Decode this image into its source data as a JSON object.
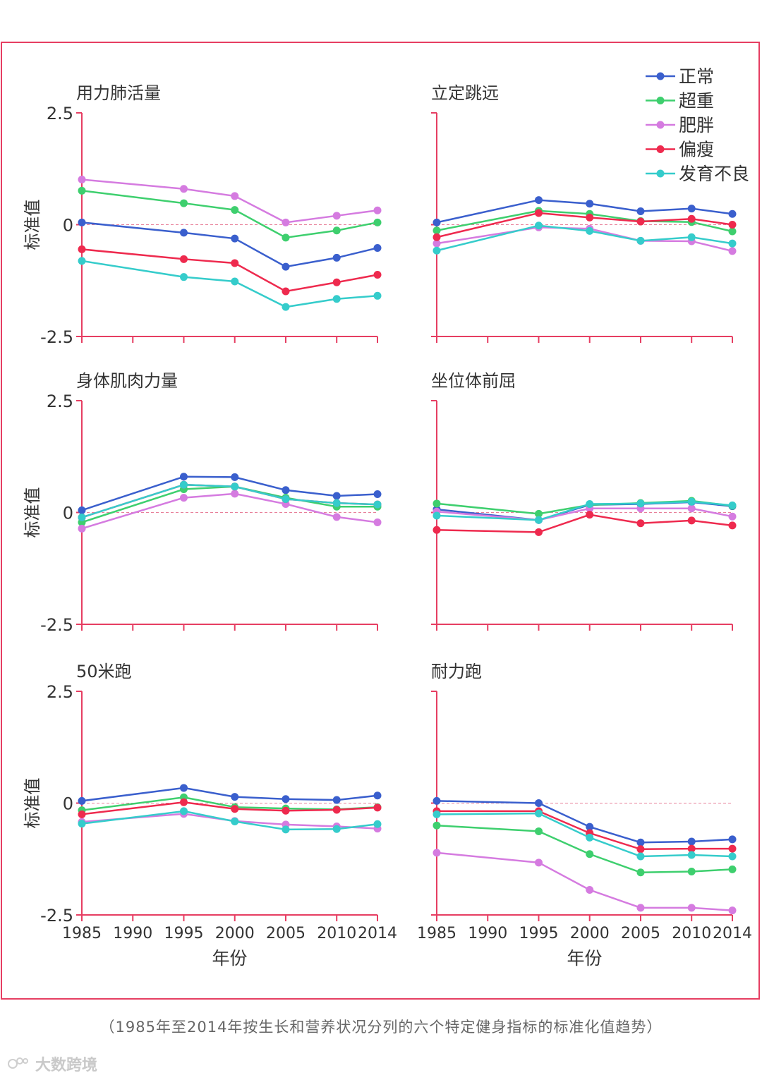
{
  "legend": [
    {
      "name": "正常",
      "color": "#3a5fcd"
    },
    {
      "name": "超重",
      "color": "#3ecf6e"
    },
    {
      "name": "肥胖",
      "color": "#d57be0"
    },
    {
      "name": "偏瘦",
      "color": "#ee2a4e"
    },
    {
      "name": "发育不良",
      "color": "#35cccb"
    }
  ],
  "axis_color": "#e63e62",
  "x_ticks": [
    "1985",
    "1990",
    "1995",
    "2000",
    "2005",
    "2010",
    "2014"
  ],
  "xlabel": "年份",
  "ylabel": "标准值",
  "y_ticks": [
    "2.5",
    "0",
    "-2.5"
  ],
  "caption": "（1985年至2014年按生长和营养状况分列的六个特定健身指标的标准化值趋势）",
  "watermark": "大数跨境",
  "chart_data": [
    {
      "type": "line",
      "title": "用力肺活量",
      "x": [
        1985,
        1995,
        2000,
        2005,
        2010,
        2014
      ],
      "ylim": [
        -2.5,
        2.5
      ],
      "series": [
        {
          "name": "正常",
          "values": [
            0.05,
            -0.18,
            -0.31,
            -0.94,
            -0.74,
            -0.52
          ]
        },
        {
          "name": "超重",
          "values": [
            0.76,
            0.48,
            0.33,
            -0.29,
            -0.13,
            0.05
          ]
        },
        {
          "name": "肥胖",
          "values": [
            1.01,
            0.8,
            0.64,
            0.05,
            0.2,
            0.32
          ]
        },
        {
          "name": "偏瘦",
          "values": [
            -0.55,
            -0.77,
            -0.86,
            -1.49,
            -1.29,
            -1.12
          ]
        },
        {
          "name": "发育不良",
          "values": [
            -0.81,
            -1.17,
            -1.27,
            -1.84,
            -1.66,
            -1.59
          ]
        }
      ]
    },
    {
      "type": "line",
      "title": "立定跳远",
      "x": [
        1985,
        1995,
        2000,
        2005,
        2010,
        2014
      ],
      "ylim": [
        -2.5,
        2.5
      ],
      "series": [
        {
          "name": "正常",
          "values": [
            0.05,
            0.55,
            0.47,
            0.3,
            0.36,
            0.24
          ]
        },
        {
          "name": "超重",
          "values": [
            -0.13,
            0.31,
            0.24,
            0.08,
            0.06,
            -0.15
          ]
        },
        {
          "name": "肥胖",
          "values": [
            -0.42,
            -0.06,
            -0.09,
            -0.36,
            -0.37,
            -0.59
          ]
        },
        {
          "name": "偏瘦",
          "values": [
            -0.28,
            0.26,
            0.16,
            0.07,
            0.13,
            0.0
          ]
        },
        {
          "name": "发育不良",
          "values": [
            -0.58,
            -0.02,
            -0.14,
            -0.36,
            -0.28,
            -0.42
          ]
        }
      ]
    },
    {
      "type": "line",
      "title": "身体肌肉力量",
      "x": [
        1985,
        1995,
        2000,
        2005,
        2010,
        2014
      ],
      "ylim": [
        -2.5,
        2.5
      ],
      "series": [
        {
          "name": "正常",
          "values": [
            0.05,
            0.8,
            0.79,
            0.5,
            0.37,
            0.41
          ]
        },
        {
          "name": "超重",
          "values": [
            -0.22,
            0.52,
            0.58,
            0.33,
            0.13,
            0.13
          ]
        },
        {
          "name": "肥胖",
          "values": [
            -0.36,
            0.33,
            0.42,
            0.19,
            -0.1,
            -0.22
          ]
        },
        {
          "name": "偏瘦",
          "values": [
            -0.11,
            0.62,
            0.58,
            0.3,
            0.21,
            0.18
          ]
        },
        {
          "name": "发育不良",
          "values": [
            -0.11,
            0.62,
            0.58,
            0.3,
            0.21,
            0.18
          ]
        }
      ]
    },
    {
      "type": "line",
      "title": "坐位体前屈",
      "x": [
        1985,
        1995,
        2000,
        2005,
        2010,
        2014
      ],
      "ylim": [
        -2.5,
        2.5
      ],
      "series": [
        {
          "name": "正常",
          "values": [
            0.07,
            -0.17,
            0.17,
            0.19,
            0.23,
            0.14
          ]
        },
        {
          "name": "超重",
          "values": [
            0.2,
            -0.03,
            0.17,
            0.21,
            0.26,
            0.15
          ]
        },
        {
          "name": "肥胖",
          "values": [
            0.02,
            -0.17,
            0.09,
            0.09,
            0.09,
            -0.09
          ]
        },
        {
          "name": "偏瘦",
          "values": [
            -0.39,
            -0.44,
            -0.05,
            -0.24,
            -0.18,
            -0.29
          ]
        },
        {
          "name": "发育不良",
          "values": [
            -0.07,
            -0.17,
            0.19,
            0.2,
            0.24,
            0.16
          ]
        }
      ]
    },
    {
      "type": "line",
      "title": "50米跑",
      "x": [
        1985,
        1995,
        2000,
        2005,
        2010,
        2014
      ],
      "ylim": [
        -2.5,
        2.5
      ],
      "series": [
        {
          "name": "正常",
          "values": [
            0.05,
            0.34,
            0.14,
            0.09,
            0.07,
            0.17
          ]
        },
        {
          "name": "超重",
          "values": [
            -0.16,
            0.13,
            -0.09,
            -0.12,
            -0.14,
            -0.09
          ]
        },
        {
          "name": "肥胖",
          "values": [
            -0.42,
            -0.24,
            -0.4,
            -0.48,
            -0.52,
            -0.57
          ]
        },
        {
          "name": "偏瘦",
          "values": [
            -0.25,
            0.02,
            -0.13,
            -0.17,
            -0.15,
            -0.1
          ]
        },
        {
          "name": "发育不良",
          "values": [
            -0.46,
            -0.18,
            -0.41,
            -0.59,
            -0.58,
            -0.47
          ]
        }
      ]
    },
    {
      "type": "line",
      "title": "耐力跑",
      "x": [
        1985,
        1995,
        2000,
        2005,
        2010,
        2014
      ],
      "ylim": [
        -2.5,
        2.5
      ],
      "series": [
        {
          "name": "正常",
          "values": [
            0.05,
            0.0,
            -0.53,
            -0.88,
            -0.86,
            -0.81
          ]
        },
        {
          "name": "超重",
          "values": [
            -0.5,
            -0.63,
            -1.14,
            -1.55,
            -1.53,
            -1.48
          ]
        },
        {
          "name": "肥胖",
          "values": [
            -1.11,
            -1.33,
            -1.94,
            -2.34,
            -2.34,
            -2.4
          ]
        },
        {
          "name": "偏瘦",
          "values": [
            -0.18,
            -0.18,
            -0.67,
            -1.03,
            -1.02,
            -1.02
          ]
        },
        {
          "name": "发育不良",
          "values": [
            -0.25,
            -0.23,
            -0.77,
            -1.19,
            -1.16,
            -1.19
          ]
        }
      ]
    }
  ]
}
